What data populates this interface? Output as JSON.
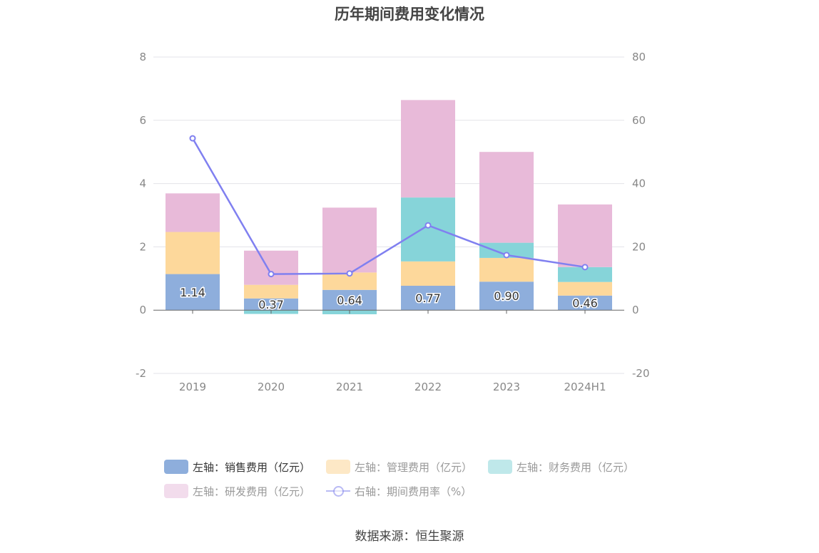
{
  "chart_data": {
    "type": "bar",
    "stacked": true,
    "title": "历年期间费用变化情况",
    "categories": [
      "2019",
      "2020",
      "2021",
      "2022",
      "2023",
      "2024H1"
    ],
    "y_left": {
      "min": -2,
      "max": 8,
      "ticks": [
        "-2",
        "0",
        "2",
        "4",
        "6",
        "8"
      ]
    },
    "y_right": {
      "min": -20,
      "max": 80,
      "ticks": [
        "-20",
        "0",
        "20",
        "40",
        "60",
        "80"
      ]
    },
    "grid": true,
    "legend_position": "bottom",
    "series": [
      {
        "name": "左轴：销售费用（亿元）",
        "axis": "left",
        "type": "bar",
        "color": "#8eaedc",
        "values": [
          1.14,
          0.37,
          0.64,
          0.77,
          0.9,
          0.46
        ],
        "labels": [
          "1.14",
          "0.37",
          "0.64",
          "0.77",
          "0.90",
          "0.46"
        ]
      },
      {
        "name": "左轴：管理费用（亿元）",
        "axis": "left",
        "type": "bar",
        "color": "#fdd89b",
        "values": [
          1.33,
          0.43,
          0.55,
          0.77,
          0.75,
          0.43
        ]
      },
      {
        "name": "左轴：财务费用（亿元）",
        "axis": "left",
        "type": "bar",
        "color": "#86d4d9",
        "values": [
          0.0,
          -0.12,
          -0.13,
          2.02,
          0.48,
          0.47
        ]
      },
      {
        "name": "左轴：研发费用（亿元）",
        "axis": "left",
        "type": "bar",
        "color": "#e8bad9",
        "values": [
          1.22,
          1.08,
          2.05,
          3.08,
          2.87,
          1.98
        ]
      },
      {
        "name": "右轴：期间费用率（%）",
        "axis": "right",
        "type": "line",
        "color": "#8080f0",
        "values": [
          54.3,
          11.4,
          11.6,
          26.8,
          17.4,
          13.6
        ]
      }
    ]
  },
  "legend": {
    "items": [
      {
        "label": "左轴：销售费用（亿元）",
        "color": "#8eaedc"
      },
      {
        "label": "左轴：管理费用（亿元）",
        "color": "#fde8c6"
      },
      {
        "label": "左轴：财务费用（亿元）",
        "color": "#bfe8ea"
      },
      {
        "label": "左轴：研发费用（亿元）",
        "color": "#f2dcec"
      },
      {
        "label": "右轴：期间费用率（%）",
        "color": "#8b8dee"
      }
    ]
  },
  "source": "数据来源：恒生聚源"
}
